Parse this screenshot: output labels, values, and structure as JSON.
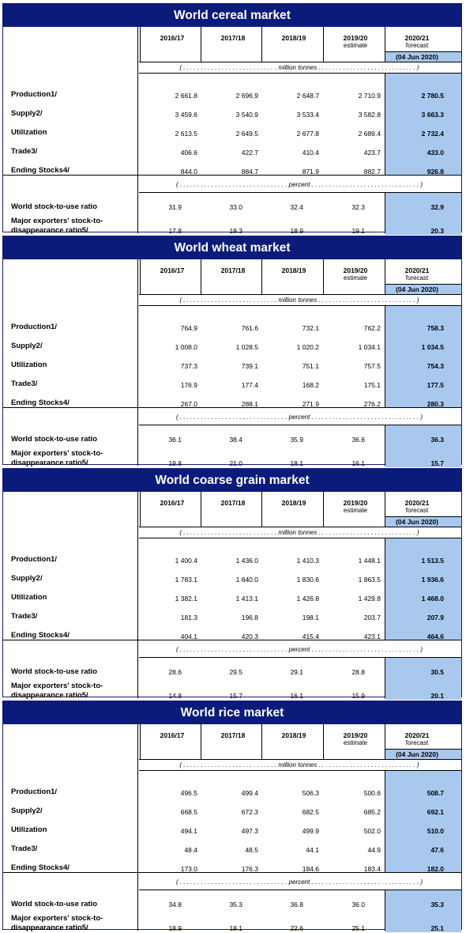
{
  "columns": [
    "2016/17",
    "2017/18",
    "2018/19",
    "2019/20",
    "2020/21"
  ],
  "estimate_label": "estimate",
  "forecast_label": "forecast",
  "forecast_date": "(04 Jun 2020)",
  "unit_million": "( . . . . . . . . . . . . . . . . . . . . . . . . . . . million tonnes . . . . . . . . . . . . . . . . . . . . . . . . . . . . )",
  "unit_percent": "( . . . . . . . . . . . . . . . . . . . . . . . . . . . . . . . percent . . . . . . . . . . . . . . . . . . . . . . . . . . . . . . . )",
  "row_labels": {
    "production": "Production1/",
    "supply": "Supply2/",
    "utilization": "Utilization",
    "trade": "Trade3/",
    "stocks": "Ending Stocks4/",
    "stock_ratio": "World stock-to-use ratio",
    "exporters_line1": "Major exporters' stock-to-",
    "exporters_line2": "disappearance ratio5/"
  },
  "markets": [
    {
      "title": "World cereal market",
      "rows": {
        "production": [
          "2 661.8",
          "2 696.9",
          "2 648.7",
          "2 710.9",
          "2 780.5"
        ],
        "supply": [
          "3 459.6",
          "3 540.9",
          "3 533.4",
          "3 582.8",
          "3 663.3"
        ],
        "utilization": [
          "2 613.5",
          "2 649.5",
          "2 677.8",
          "2 689.4",
          "2 732.4"
        ],
        "trade": [
          "406.6",
          "422.7",
          "410.4",
          "423.7",
          "433.0"
        ],
        "stocks": [
          "844.0",
          "884.7",
          "871.9",
          "882.7",
          "926.8"
        ],
        "stock_ratio": [
          "31.9",
          "33.0",
          "32.4",
          "32.3",
          "32.9"
        ],
        "exporters": [
          "17.8",
          "18.3",
          "18.9",
          "19.1",
          "20.3"
        ]
      }
    },
    {
      "title": "World wheat market",
      "rows": {
        "production": [
          "764.9",
          "761.6",
          "732.1",
          "762.2",
          "758.3"
        ],
        "supply": [
          "1 008.0",
          "1 028.5",
          "1 020.2",
          "1 034.1",
          "1 034.5"
        ],
        "utilization": [
          "737.3",
          "739.1",
          "751.1",
          "757.5",
          "754.3"
        ],
        "trade": [
          "176.9",
          "177.4",
          "168.2",
          "175.1",
          "177.5"
        ],
        "stocks": [
          "267.0",
          "288.1",
          "271.9",
          "276.2",
          "280.3"
        ],
        "stock_ratio": [
          "36.1",
          "38.4",
          "35.9",
          "36.6",
          "36.3"
        ],
        "exporters": [
          "19.8",
          "21.0",
          "18.1",
          "16.1",
          "15.7"
        ]
      }
    },
    {
      "title": "World coarse grain market",
      "rows": {
        "production": [
          "1 400.4",
          "1 436.0",
          "1 410.3",
          "1 448.1",
          "1 513.5"
        ],
        "supply": [
          "1 783.1",
          "1 840.0",
          "1 830.6",
          "1 863.5",
          "1 936.6"
        ],
        "utilization": [
          "1 382.1",
          "1 413.1",
          "1 426.8",
          "1 429.8",
          "1 468.0"
        ],
        "trade": [
          "181.3",
          "196.8",
          "198.1",
          "203.7",
          "207.9"
        ],
        "stocks": [
          "404.1",
          "420.3",
          "415.4",
          "423.1",
          "464.6"
        ],
        "stock_ratio": [
          "28.6",
          "29.5",
          "29.1",
          "28.8",
          "30.5"
        ],
        "exporters": [
          "14.8",
          "15.7",
          "16.1",
          "15.9",
          "20.1"
        ]
      }
    },
    {
      "title": "World rice market",
      "rows": {
        "production": [
          "496.5",
          "499.4",
          "506.3",
          "500.6",
          "508.7"
        ],
        "supply": [
          "668.5",
          "672.3",
          "682.5",
          "685.2",
          "692.1"
        ],
        "utilization": [
          "494.1",
          "497.3",
          "499.9",
          "502.0",
          "510.0"
        ],
        "trade": [
          "48.4",
          "48.5",
          "44.1",
          "44.9",
          "47.6"
        ],
        "stocks": [
          "173.0",
          "176.3",
          "184.6",
          "183.4",
          "182.0"
        ],
        "stock_ratio": [
          "34.8",
          "35.3",
          "36.8",
          "36.0",
          "35.3"
        ],
        "exporters": [
          "18.9",
          "18.1",
          "22.6",
          "25.1",
          "25.1"
        ]
      }
    }
  ]
}
